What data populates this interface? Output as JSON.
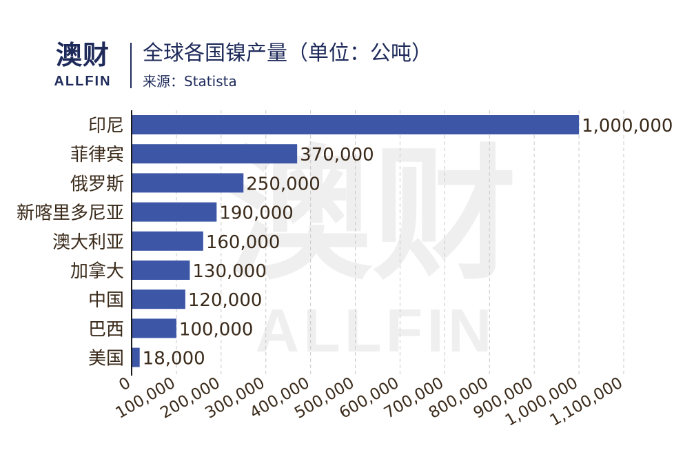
{
  "header": {
    "logo_cn": "澳财",
    "logo_en": "ALLFIN",
    "title": "全球各国镍产量（单位：公吨）",
    "source": "来源：Statista"
  },
  "watermark": {
    "cn": "澳财",
    "en": "ALLFIN"
  },
  "colors": {
    "bar": "#3d56a6",
    "text": "#3a2a1a",
    "grid": "#c8c8c8",
    "axis": "#1a1a1a",
    "brand": "#1e2a5a",
    "watermark": "#efefef"
  },
  "chart_data": {
    "type": "bar",
    "orientation": "horizontal",
    "categories": [
      "印尼",
      "菲律宾",
      "俄罗斯",
      "新喀里多尼亚",
      "澳大利亚",
      "加拿大",
      "中国",
      "巴西",
      "美国"
    ],
    "values": [
      1000000,
      370000,
      250000,
      190000,
      160000,
      130000,
      120000,
      100000,
      18000
    ],
    "value_labels": [
      "1,000,000",
      "370,000",
      "250,000",
      "190,000",
      "160,000",
      "130,000",
      "120,000",
      "100,000",
      "18,000"
    ],
    "xlim": [
      0,
      1100000
    ],
    "xticks": [
      0,
      100000,
      200000,
      300000,
      400000,
      500000,
      600000,
      700000,
      800000,
      900000,
      1000000,
      1100000
    ],
    "xtick_labels": [
      "0",
      "100,000",
      "200,000",
      "300,000",
      "400,000",
      "500,000",
      "600,000",
      "700,000",
      "800,000",
      "900,000",
      "1,000,000",
      "1,100,000"
    ],
    "grid": "vertical dashed",
    "legend": "none"
  }
}
